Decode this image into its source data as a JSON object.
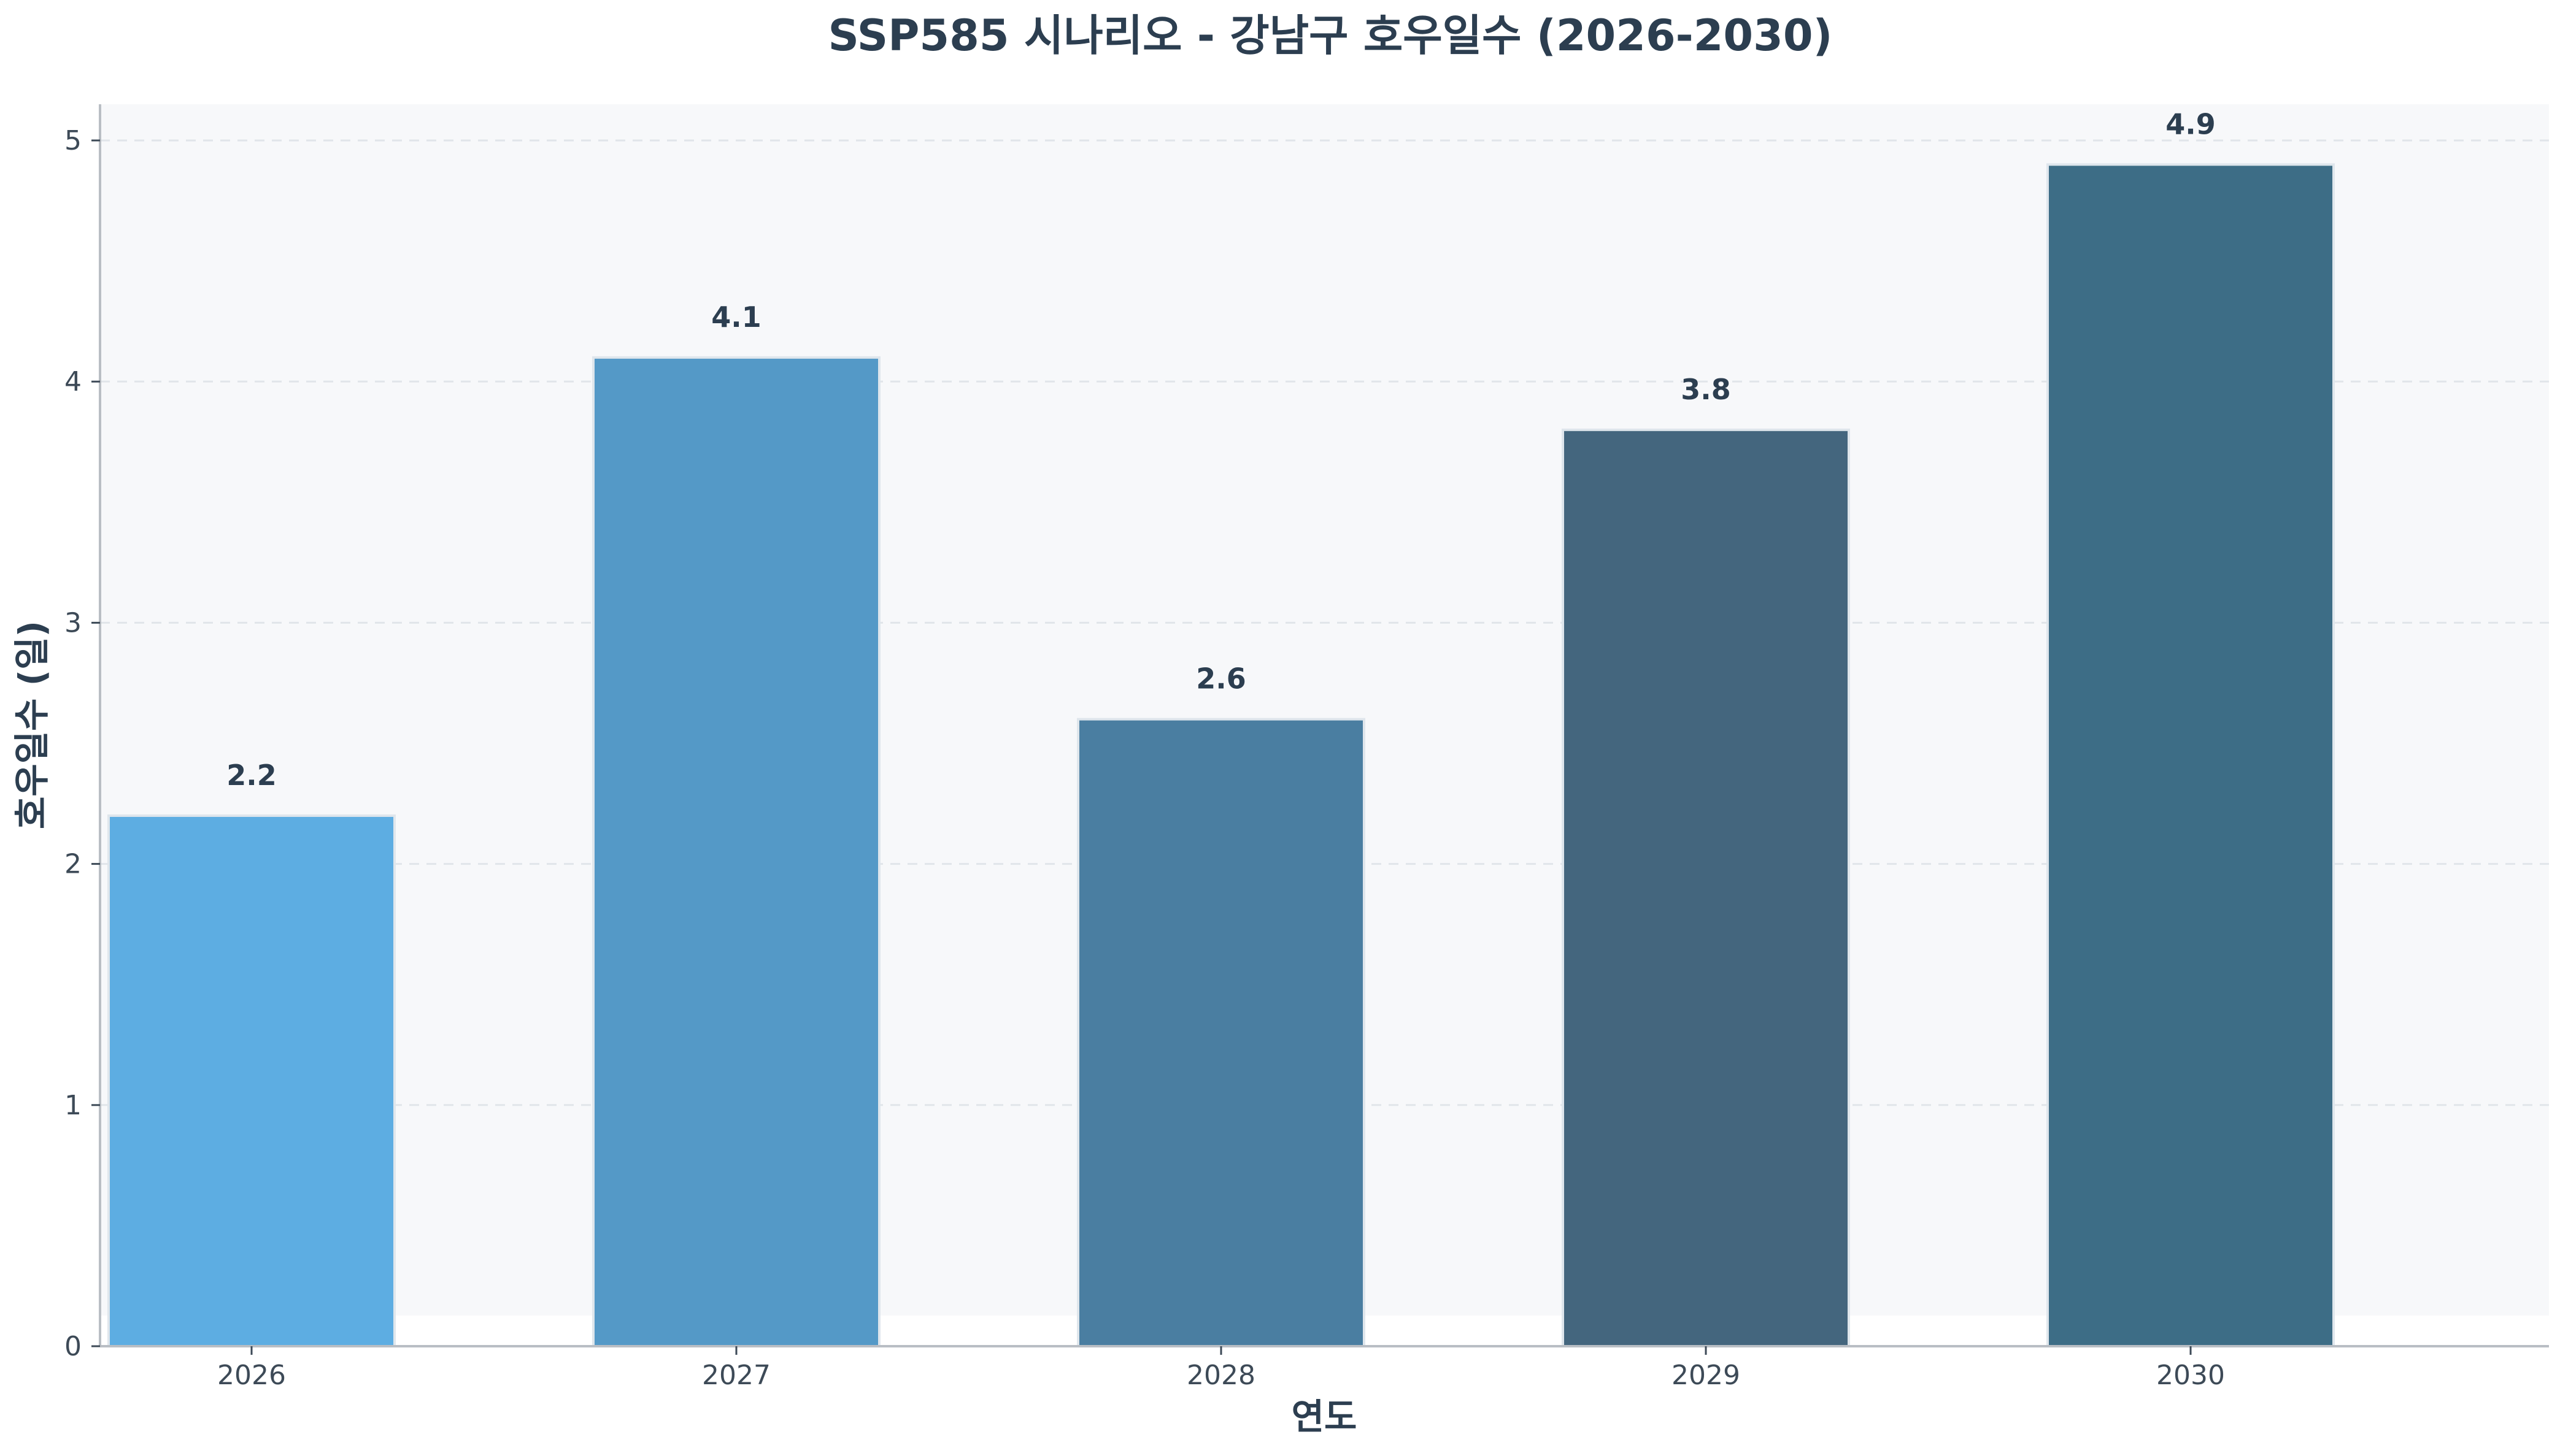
{
  "chart_data": {
    "type": "bar",
    "title": "SSP585 시나리오 - 강남구 호우일수 (2026-2030)",
    "xlabel": "연도",
    "ylabel": "호우일수 (일)",
    "categories": [
      "2026",
      "2027",
      "2028",
      "2029",
      "2030"
    ],
    "values": [
      2.2,
      4.1,
      2.6,
      3.8,
      4.9
    ],
    "value_labels": [
      "2.2",
      "4.1",
      "2.6",
      "3.8",
      "4.9"
    ],
    "bar_colors": [
      "#5dade2",
      "#5499c7",
      "#4a7ea1",
      "#44667e",
      "#3d6d86"
    ],
    "ylim": [
      0,
      5.15
    ],
    "yticks": [
      0,
      1,
      2,
      3,
      4,
      5
    ],
    "ytick_labels": [
      "0",
      "1",
      "2",
      "3",
      "4",
      "5"
    ],
    "grid": "horizontal-dashed",
    "plot_background": "#f7f8fa",
    "text_color": "#2c3e50"
  }
}
